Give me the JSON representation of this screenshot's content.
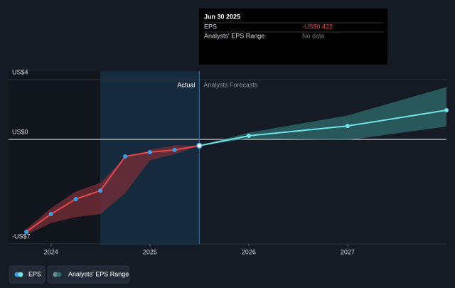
{
  "chart_data": {
    "type": "line",
    "xlim": [
      2023.57,
      2028.0
    ],
    "xticks": [
      2024,
      2025,
      2026,
      2027
    ],
    "ylim": [
      -7,
      4
    ],
    "yticks": [
      {
        "value": 4,
        "label": "US$4"
      },
      {
        "value": 0,
        "label": "US$0"
      },
      {
        "value": -7,
        "label": "-US$7"
      }
    ],
    "divider_labels": [
      "Actual",
      "Analysts Forecasts"
    ],
    "series": [
      {
        "name": "EPS",
        "color": "#e5484d",
        "forecast_color": "#6fe3e8",
        "x": [
          2023.75,
          2024.0,
          2024.25,
          2024.5,
          2024.75,
          2025.0,
          2025.25,
          2025.5,
          2026.0,
          2027.0,
          2028.0
        ],
        "values": [
          -6.19,
          -5.0,
          -4.0,
          -3.43,
          -1.14,
          -0.86,
          -0.71,
          -0.422,
          0.24,
          0.9,
          1.95
        ]
      }
    ],
    "range": {
      "name": "Analysts' EPS Range",
      "color": "#2f6e6c",
      "past_color": "#7a2e35",
      "x": [
        2023.75,
        2024.0,
        2024.25,
        2024.5,
        2024.75,
        2025.0,
        2025.25,
        2025.5,
        2026.0,
        2027.0,
        2028.0
      ],
      "low": [
        -6.4,
        -5.6,
        -5.2,
        -5.0,
        -3.6,
        -1.4,
        -1.0,
        -0.422,
        0.05,
        -0.05,
        0.86
      ],
      "high": [
        -6.0,
        -4.6,
        -3.5,
        -2.9,
        -1.2,
        -0.7,
        -0.4,
        -0.422,
        0.45,
        1.6,
        3.5
      ]
    },
    "tooltip": {
      "date": "Jun 30 2025",
      "rows": [
        {
          "label": "EPS",
          "value": "-US$0.422"
        },
        {
          "label": "Analysts' EPS Range",
          "value": "No data"
        }
      ]
    }
  }
}
